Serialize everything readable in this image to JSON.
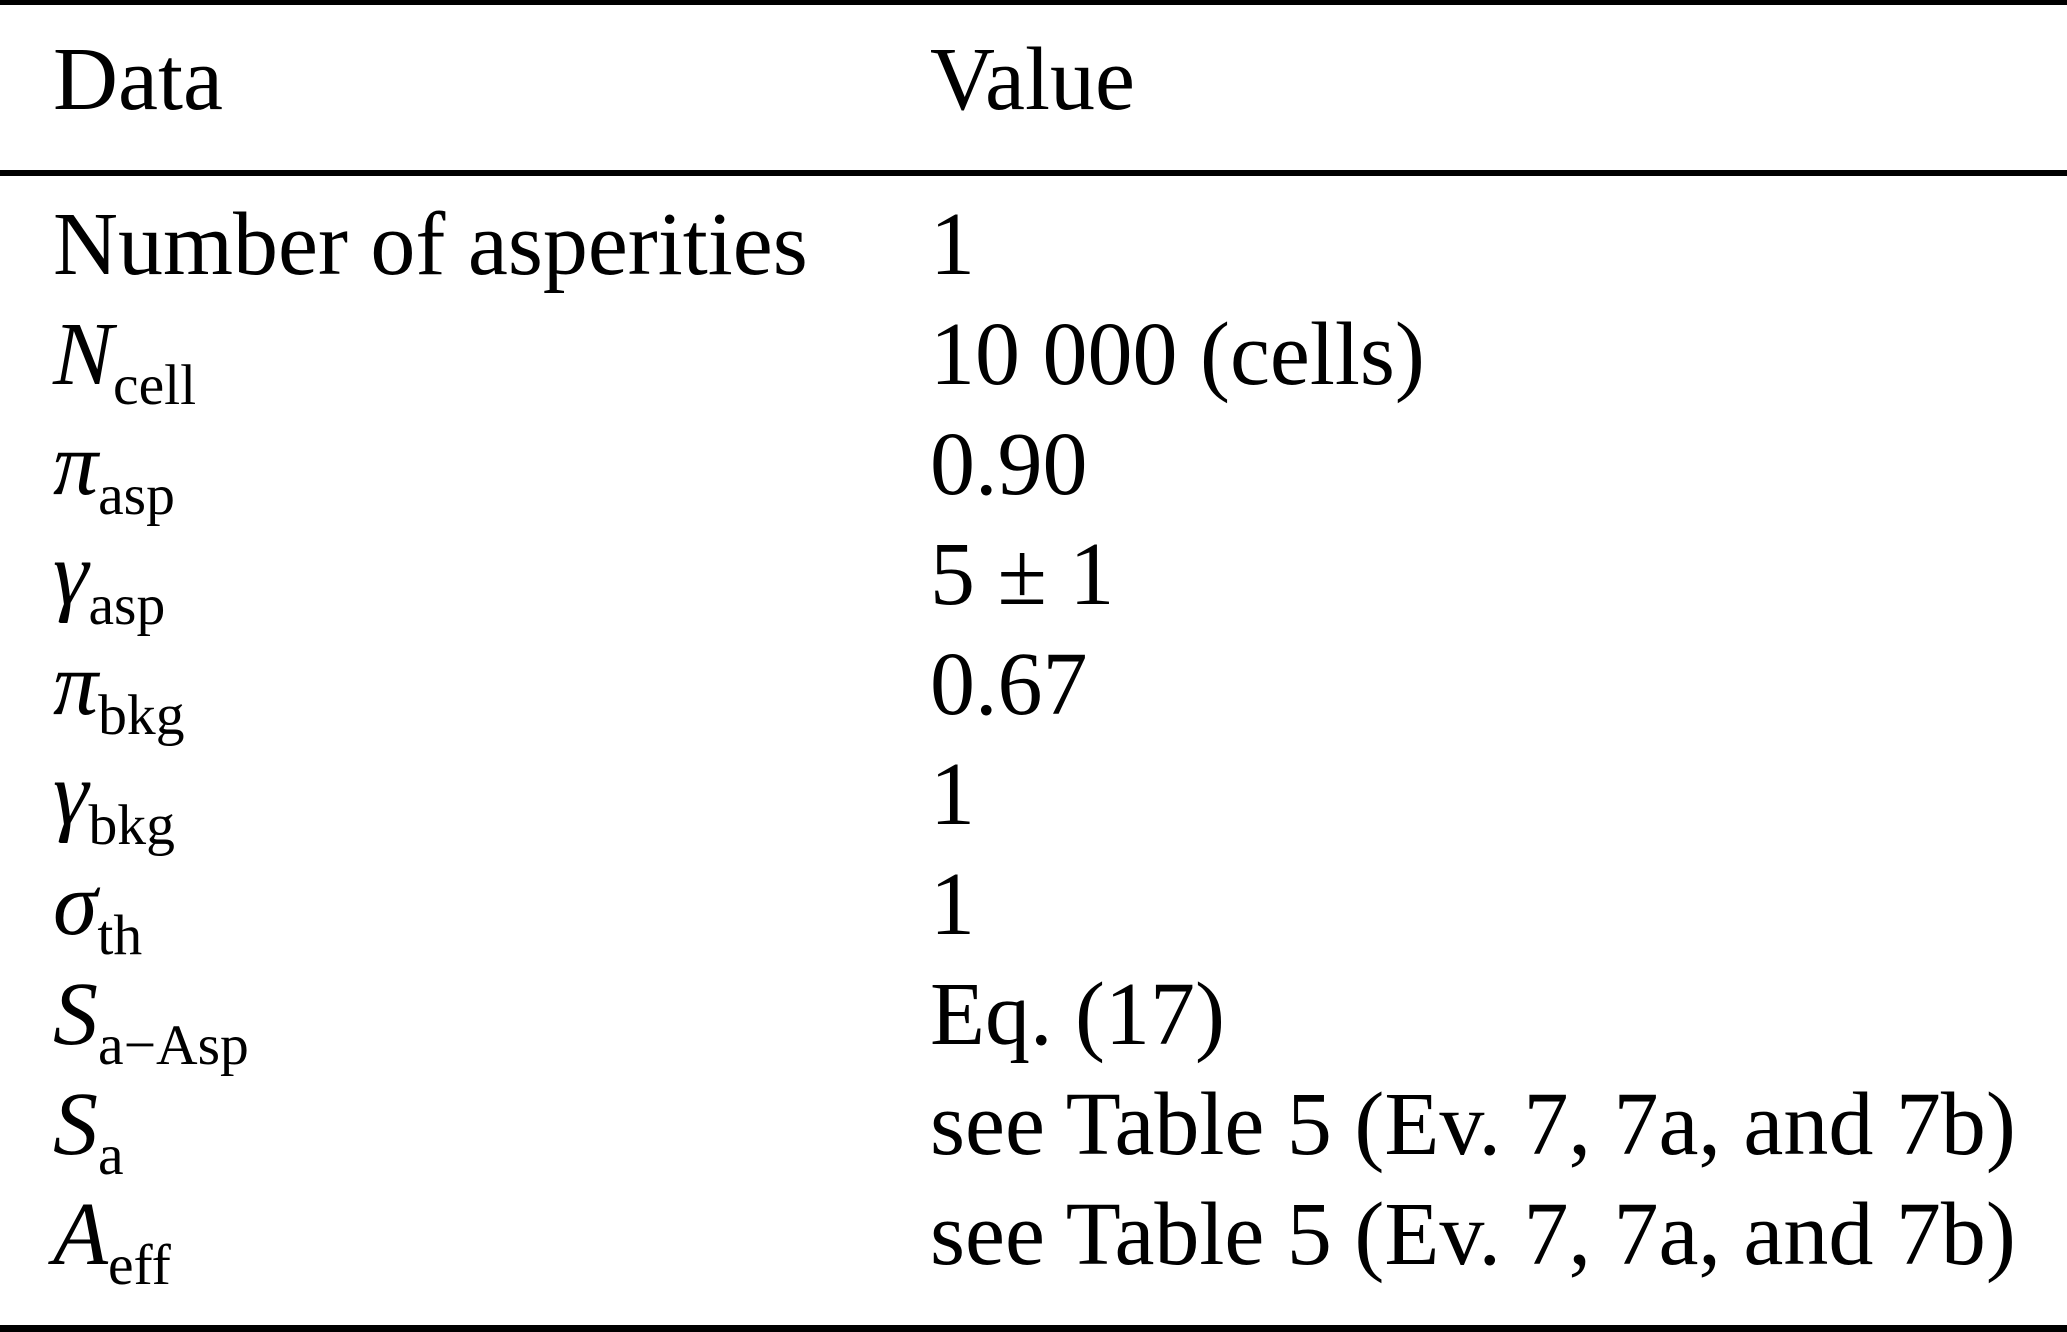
{
  "table": {
    "columns": [
      "Data",
      "Value"
    ],
    "rows": [
      {
        "base": "Number of asperities",
        "sub": "",
        "value": "1"
      },
      {
        "base": "N",
        "sub": "cell",
        "value": "10 000 (cells)"
      },
      {
        "base": "π",
        "sub": "asp",
        "value": "0.90"
      },
      {
        "base": "γ",
        "sub": "asp",
        "value": "5 ± 1"
      },
      {
        "base": "π",
        "sub": "bkg",
        "value": "0.67"
      },
      {
        "base": "γ",
        "sub": "bkg",
        "value": "1"
      },
      {
        "base": "σ",
        "sub": "th",
        "value": "1"
      },
      {
        "base": "S",
        "sub": "a−Asp",
        "value": "Eq. (17)"
      },
      {
        "base": "S",
        "sub": "a",
        "value": "see Table 5 (Ev. 7, 7a, and 7b)"
      },
      {
        "base": "A",
        "sub": "eff",
        "value": "see Table 5 (Ev. 7, 7a, and 7b)"
      }
    ]
  }
}
